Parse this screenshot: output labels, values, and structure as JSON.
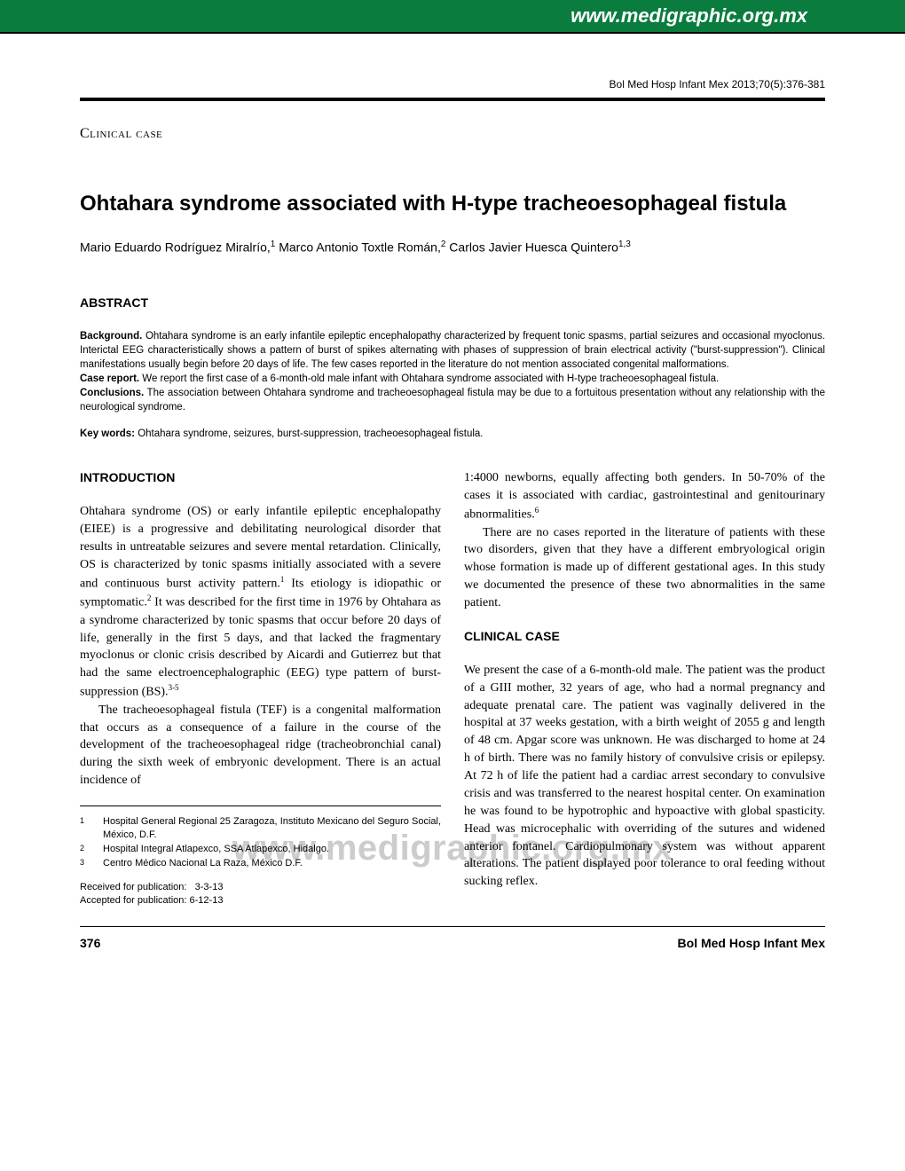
{
  "banner": {
    "url": "www.medigraphic.org.mx"
  },
  "journal_ref": "Bol Med Hosp Infant Mex 2013;70(5):376-381",
  "section_label": "Clinical case",
  "title": "Ohtahara syndrome associated with H-type tracheoesophageal fistula",
  "authors_html": "Mario Eduardo Rodríguez Miralrío,<sup>1</sup> Marco Antonio Toxtle Román,<sup>2</sup> Carlos Javier Huesca Quintero<sup>1,3</sup>",
  "abstract": {
    "heading": "ABSTRACT",
    "body_html": "<b>Background.</b> Ohtahara syndrome is an early infantile epileptic encephalopathy characterized by frequent tonic spasms, partial seizures and occasional myoclonus. Interictal EEG characteristically shows a pattern of burst of spikes alternating with phases of suppression of brain electrical activity (\"burst-suppression\"). Clinical manifestations usually begin before 20 days of life. The few cases reported in the literature do not mention associated congenital malformations.<br><b>Case report.</b> We report the first case of a 6-month-old male infant with Ohtahara syndrome associated with H-type tracheoesophageal fistula.<br><b>Conclusions.</b> The association between Ohtahara syndrome and tracheoesophageal fistula may be due to a fortuitous presentation without any relationship with the neurological syndrome.",
    "keywords_label": "Key words:",
    "keywords_text": " Ohtahara syndrome, seizures, burst-suppression, tracheoesophageal fistula."
  },
  "left_col": {
    "heading": "INTRODUCTION",
    "p1_html": "Ohtahara syndrome (OS) or early infantile epileptic encephalopathy (EIEE) is a progressive and debilitating neurological disorder that results in untreatable seizures and severe mental retardation. Clinically, OS is characterized by tonic spasms initially associated with a severe and continuous burst activity pattern.<sup>1</sup> Its etiology is idiopathic or symptomatic.<sup>2</sup> It was described for the first time in 1976 by Ohtahara as a syndrome characterized by tonic spasms that occur before 20 days of life, generally in the first 5 days, and that lacked the fragmentary myoclonus or clonic crisis described by Aicardi and Gutierrez but that had the same electroencephalographic (EEG) type pattern of burst-suppression (BS).<sup>3-5</sup>",
    "p2_html": "The tracheoesophageal fistula (TEF) is a congenital malformation that occurs as a consequence of a failure in the course of the development of the tracheoesophageal ridge (tracheobronchial canal) during the sixth week of embryonic development. There is an actual incidence of"
  },
  "right_col": {
    "p1_html": "1:4000 newborns, equally affecting both genders. In 50-70% of the cases it is associated with cardiac, gastrointestinal and genitourinary abnormalities.<sup>6</sup>",
    "p2_html": "There are no cases reported in the literature of patients with these two disorders, given that they have a different embryological origin whose formation is made up of different gestational ages. In this study we documented the presence of these two abnormalities in the same patient.",
    "heading2": "CLINICAL CASE",
    "p3_html": "We present the case of a 6-month-old male. The patient was the product of a GIII mother, 32 years of age, who had a normal pregnancy and adequate prenatal care. The patient was vaginally delivered in the hospital at 37 weeks gestation, with a birth weight of 2055 g and length of 48 cm. Apgar score was unknown. He was discharged to home at 24 h of birth. There was no family history of convulsive crisis or epilepsy. At 72 h of life the patient had a cardiac arrest secondary to convulsive crisis and was transferred to the nearest hospital center. On examination he was found to be hypotrophic and hypoactive with global spasticity. Head was microcephalic with overriding of the sutures and widened anterior fontanel. Cardiopulmonary system was without apparent alterations. The patient displayed poor tolerance to oral feeding without sucking reflex."
  },
  "affiliations": [
    {
      "num": "1",
      "text": "Hospital General Regional 25 Zaragoza, Instituto Mexicano del Seguro Social, México, D.F."
    },
    {
      "num": "2",
      "text": "Hospital Integral Atlapexco, SSA Atlapexco, Hidalgo."
    },
    {
      "num": "3",
      "text": "Centro Médico Nacional La Raza, México D.F."
    }
  ],
  "dates": {
    "received_label": "Received for publication:",
    "received_value": "3-3-13",
    "accepted_label": "Accepted for publication:",
    "accepted_value": "6-12-13"
  },
  "watermark": "www.medigraphic.org.mx",
  "footer": {
    "page": "376",
    "journal": "Bol Med Hosp Infant Mex"
  },
  "colors": {
    "banner_bg": "#0a7d3e",
    "banner_fg": "#ffffff",
    "watermark": "#cccccc"
  }
}
